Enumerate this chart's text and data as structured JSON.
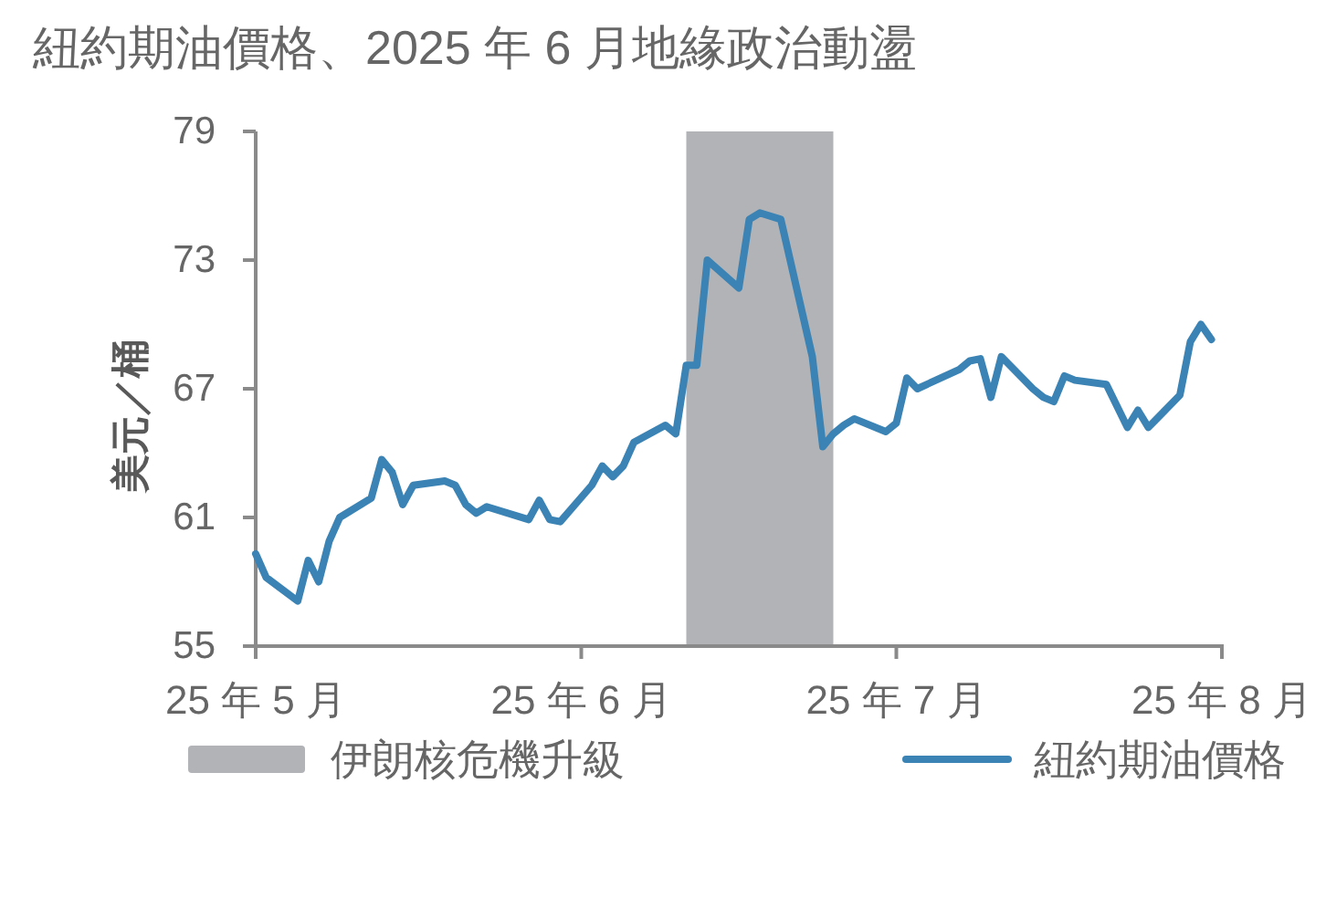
{
  "chart_data": {
    "type": "line",
    "title": "紐約期油價格、2025 年 6 月地緣政治動盪",
    "ylabel": "美元／桶",
    "x": [
      "2025-05-01",
      "2025-05-02",
      "2025-05-05",
      "2025-05-06",
      "2025-05-07",
      "2025-05-08",
      "2025-05-09",
      "2025-05-12",
      "2025-05-13",
      "2025-05-14",
      "2025-05-15",
      "2025-05-16",
      "2025-05-19",
      "2025-05-20",
      "2025-05-21",
      "2025-05-22",
      "2025-05-23",
      "2025-05-27",
      "2025-05-28",
      "2025-05-29",
      "2025-05-30",
      "2025-06-02",
      "2025-06-03",
      "2025-06-04",
      "2025-06-05",
      "2025-06-06",
      "2025-06-09",
      "2025-06-10",
      "2025-06-11",
      "2025-06-12",
      "2025-06-13",
      "2025-06-16",
      "2025-06-17",
      "2025-06-18",
      "2025-06-20",
      "2025-06-23",
      "2025-06-24",
      "2025-06-25",
      "2025-06-26",
      "2025-06-27",
      "2025-06-30",
      "2025-07-01",
      "2025-07-02",
      "2025-07-03",
      "2025-07-07",
      "2025-07-08",
      "2025-07-09",
      "2025-07-10",
      "2025-07-11",
      "2025-07-14",
      "2025-07-15",
      "2025-07-16",
      "2025-07-17",
      "2025-07-18",
      "2025-07-21",
      "2025-07-23",
      "2025-07-24",
      "2025-07-25",
      "2025-07-28",
      "2025-07-29",
      "2025-07-30",
      "2025-07-31"
    ],
    "series": [
      {
        "name": "紐約期油價格",
        "color": "#3a83b4",
        "values": [
          59.3,
          58.2,
          57.1,
          59.0,
          58.0,
          59.9,
          61.0,
          61.9,
          63.7,
          63.1,
          61.6,
          62.5,
          62.7,
          62.5,
          61.6,
          61.2,
          61.5,
          60.9,
          61.8,
          60.9,
          60.8,
          62.5,
          63.4,
          62.9,
          63.4,
          64.5,
          65.3,
          64.9,
          68.1,
          68.1,
          73.0,
          71.7,
          74.9,
          75.2,
          74.9,
          68.5,
          64.3,
          64.9,
          65.3,
          65.6,
          65.0,
          65.4,
          67.5,
          67.0,
          67.9,
          68.3,
          68.4,
          66.6,
          68.5,
          67.0,
          66.6,
          66.4,
          67.6,
          67.4,
          67.2,
          65.2,
          66.0,
          65.2,
          66.7,
          69.2,
          70.0,
          69.3
        ]
      }
    ],
    "xlim": [
      "2025-05-01",
      "2025-08-01"
    ],
    "xticks": [
      {
        "value": "2025-05-01",
        "label": "25 年 5 月"
      },
      {
        "value": "2025-06-01",
        "label": "25 年 6 月"
      },
      {
        "value": "2025-07-01",
        "label": "25 年 7 月"
      },
      {
        "value": "2025-08-01",
        "label": "25 年 8 月"
      }
    ],
    "ylim": [
      55,
      79
    ],
    "yticks": [
      55,
      61,
      67,
      73,
      79
    ],
    "bands": [
      {
        "axis": "x",
        "from": "2025-06-11",
        "to": "2025-06-25",
        "label": "伊朗核危機升級",
        "color": "#b2b3b6"
      }
    ],
    "legend": "bottom"
  }
}
